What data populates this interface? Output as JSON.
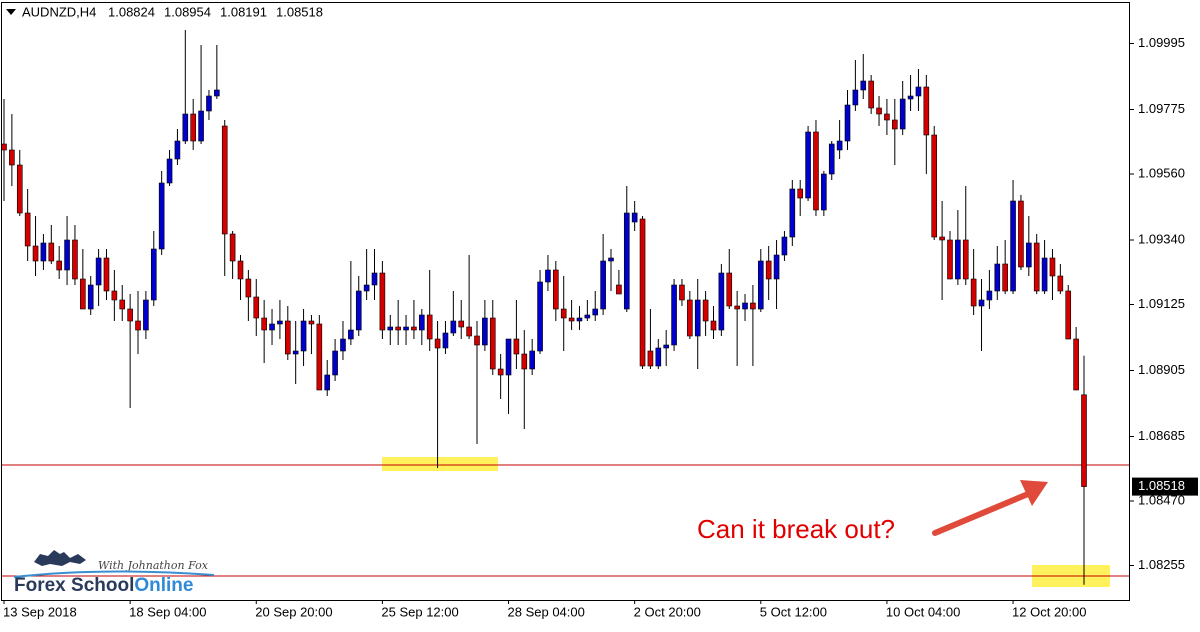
{
  "chart_data": {
    "type": "candlestick",
    "symbol": "AUDNZD,H4",
    "annotation": "Can it break out?",
    "logo": {
      "brand": "Forex School",
      "brand_accent": "Online",
      "tagline": "With Johnathon Fox"
    },
    "up_color": "#0000cd",
    "down_color": "#d40000",
    "wick_color": "#000000",
    "level_color": "#c00000",
    "ylim": [
      1.0814,
      1.1014
    ],
    "yticks": [
      1.09995,
      1.09775,
      {
        "value": 1.0956,
        "label": "1.09560"
      },
      {
        "value": 1.0934,
        "label": "1.09340"
      },
      1.09125,
      1.08905,
      1.08685,
      {
        "value": 1.0847,
        "label": "1.08470"
      },
      1.08255
    ],
    "levels": [
      1.0859,
      1.0822
    ],
    "categories": [
      "13 Sep 2018",
      null,
      null,
      null,
      null,
      null,
      null,
      null,
      null,
      null,
      null,
      null,
      null,
      null,
      null,
      null,
      "18 Sep 04:00",
      null,
      null,
      null,
      null,
      null,
      null,
      null,
      null,
      null,
      null,
      null,
      null,
      null,
      null,
      null,
      "20 Sep 20:00",
      null,
      null,
      null,
      null,
      null,
      null,
      null,
      null,
      null,
      null,
      null,
      null,
      null,
      null,
      null,
      "25 Sep 12:00",
      null,
      null,
      null,
      null,
      null,
      null,
      null,
      null,
      null,
      null,
      null,
      null,
      null,
      null,
      null,
      "28 Sep 04:00",
      null,
      null,
      null,
      null,
      null,
      null,
      null,
      null,
      null,
      null,
      null,
      null,
      null,
      null,
      null,
      "2 Oct 20:00",
      null,
      null,
      null,
      null,
      null,
      null,
      null,
      null,
      null,
      null,
      null,
      null,
      null,
      null,
      null,
      "5 Oct 12:00",
      null,
      null,
      null,
      null,
      null,
      null,
      null,
      null,
      null,
      null,
      null,
      null,
      null,
      null,
      null,
      "10 Oct 04:00",
      null,
      null,
      null,
      null,
      null,
      null,
      null,
      null,
      null,
      null,
      null,
      null,
      null,
      null,
      null,
      "12 Oct 20:00",
      null,
      null,
      null,
      null,
      null,
      null,
      null,
      null,
      null
    ],
    "ohlc": [
      [
        1.0966,
        1.0981,
        1.0947,
        1.0964
      ],
      [
        1.0964,
        1.0976,
        1.0952,
        1.0959
      ],
      [
        1.0959,
        1.0964,
        1.0942,
        1.0943
      ],
      [
        1.0943,
        1.0951,
        1.0927,
        1.0932
      ],
      [
        1.0932,
        1.0942,
        1.0922,
        1.0927
      ],
      [
        1.0927,
        1.0936,
        1.0924,
        1.0933
      ],
      [
        1.0933,
        1.0939,
        1.0926,
        1.0927
      ],
      [
        1.0927,
        1.0932,
        1.0921,
        1.0924
      ],
      [
        1.0924,
        1.0942,
        1.0919,
        1.0934
      ],
      [
        1.0934,
        1.0939,
        1.0919,
        1.0921
      ],
      [
        1.0921,
        1.0931,
        1.0911,
        1.0911
      ],
      [
        1.0911,
        1.0922,
        1.0909,
        1.0919
      ],
      [
        1.0919,
        1.0931,
        1.0912,
        1.0928
      ],
      [
        1.0928,
        1.0931,
        1.0914,
        1.0917
      ],
      [
        1.0917,
        1.0924,
        1.0907,
        1.0914
      ],
      [
        1.0914,
        1.0919,
        1.0907,
        1.0911
      ],
      [
        1.0911,
        1.0916,
        1.0878,
        1.0907
      ],
      [
        1.0907,
        1.0917,
        1.0896,
        1.0904
      ],
      [
        1.0904,
        1.0917,
        1.0901,
        1.0914
      ],
      [
        1.0914,
        1.0937,
        1.0912,
        1.0931
      ],
      [
        1.0931,
        1.0957,
        1.0929,
        1.0953
      ],
      [
        1.0953,
        1.0964,
        1.0952,
        1.0961
      ],
      [
        1.0961,
        1.0971,
        1.0959,
        1.0967
      ],
      [
        1.0967,
        1.1004,
        1.0966,
        1.0976
      ],
      [
        1.0976,
        1.0981,
        1.0964,
        1.0967
      ],
      [
        1.0967,
        1.0999,
        1.0966,
        1.0977
      ],
      [
        1.0977,
        1.0984,
        1.0974,
        1.0982
      ],
      [
        1.0982,
        1.0999,
        1.0981,
        1.0984
      ],
      [
        1.0972,
        1.0974,
        1.0922,
        1.0936
      ],
      [
        1.0936,
        1.0937,
        1.0921,
        1.0927
      ],
      [
        1.0927,
        1.0929,
        1.0914,
        1.0921
      ],
      [
        1.0921,
        1.0924,
        1.0907,
        1.0915
      ],
      [
        1.0915,
        1.0921,
        1.0902,
        1.0908
      ],
      [
        1.0908,
        1.0914,
        1.0893,
        1.0904
      ],
      [
        1.0904,
        1.0911,
        1.0899,
        1.0906
      ],
      [
        1.0906,
        1.0914,
        1.0901,
        1.0907
      ],
      [
        1.0907,
        1.0912,
        1.0894,
        1.0896
      ],
      [
        1.0896,
        1.0907,
        1.0886,
        1.0897
      ],
      [
        1.0897,
        1.0911,
        1.0892,
        1.0907
      ],
      [
        1.0907,
        1.0909,
        1.0896,
        1.0906
      ],
      [
        1.0906,
        1.0909,
        1.0884,
        1.0884
      ],
      [
        1.0884,
        1.0894,
        1.0882,
        1.0889
      ],
      [
        1.0889,
        1.0901,
        1.0887,
        1.0897
      ],
      [
        1.0897,
        1.0907,
        1.0894,
        1.0901
      ],
      [
        1.0901,
        1.0927,
        1.0899,
        1.0904
      ],
      [
        1.0904,
        1.0922,
        1.0902,
        1.0917
      ],
      [
        1.0917,
        1.0931,
        1.0914,
        1.0919
      ],
      [
        1.0919,
        1.0931,
        1.0914,
        1.0923
      ],
      [
        1.0923,
        1.0927,
        1.0901,
        1.0904
      ],
      [
        1.0904,
        1.0909,
        1.0899,
        1.0905
      ],
      [
        1.0905,
        1.0914,
        1.0899,
        1.0904
      ],
      [
        1.0904,
        1.0909,
        1.0899,
        1.0905
      ],
      [
        1.0905,
        1.0914,
        1.0901,
        1.0904
      ],
      [
        1.0904,
        1.0911,
        1.0899,
        1.0909
      ],
      [
        1.0909,
        1.0924,
        1.0897,
        1.0901
      ],
      [
        1.0901,
        1.0907,
        1.0858,
        1.0898
      ],
      [
        1.0898,
        1.0907,
        1.0896,
        1.0903
      ],
      [
        1.0903,
        1.0917,
        1.0902,
        1.0907
      ],
      [
        1.0907,
        1.0914,
        1.0901,
        1.0905
      ],
      [
        1.0905,
        1.0929,
        1.0901,
        1.0902
      ],
      [
        1.0902,
        1.0907,
        1.0866,
        1.0899
      ],
      [
        1.0899,
        1.0914,
        1.0897,
        1.0908
      ],
      [
        1.0908,
        1.0914,
        1.0889,
        1.0891
      ],
      [
        1.0891,
        1.0896,
        1.0881,
        1.0889
      ],
      [
        1.0889,
        1.0901,
        1.0876,
        1.0901
      ],
      [
        1.0901,
        1.0914,
        1.0891,
        1.0896
      ],
      [
        1.0896,
        1.0904,
        1.0871,
        1.0891
      ],
      [
        1.0891,
        1.0901,
        1.0889,
        1.0897
      ],
      [
        1.0897,
        1.0924,
        1.0896,
        1.092
      ],
      [
        1.092,
        1.0929,
        1.0917,
        1.0924
      ],
      [
        1.0924,
        1.0927,
        1.0907,
        1.0911
      ],
      [
        1.0911,
        1.0922,
        1.0897,
        1.0908
      ],
      [
        1.0908,
        1.0914,
        1.0904,
        1.0907
      ],
      [
        1.0907,
        1.0912,
        1.0904,
        1.0908
      ],
      [
        1.0908,
        1.0914,
        1.0907,
        1.0909
      ],
      [
        1.0909,
        1.0917,
        1.0907,
        1.0911
      ],
      [
        1.0911,
        1.0936,
        1.0909,
        1.0927
      ],
      [
        1.0927,
        1.0931,
        1.0917,
        1.0928
      ],
      [
        1.0919,
        1.0924,
        1.0916,
        1.0916
      ],
      [
        1.0911,
        1.0952,
        1.091,
        1.0943
      ],
      [
        1.094,
        1.0947,
        1.0937,
        1.0943
      ],
      [
        1.0941,
        1.0942,
        1.0891,
        1.0892
      ],
      [
        1.0897,
        1.0911,
        1.0891,
        1.0892
      ],
      [
        1.0892,
        1.0901,
        1.0891,
        1.0898
      ],
      [
        1.0898,
        1.0904,
        1.0892,
        1.0899
      ],
      [
        1.0899,
        1.0921,
        1.0897,
        1.0919
      ],
      [
        1.0919,
        1.0921,
        1.0912,
        1.0914
      ],
      [
        1.0914,
        1.0917,
        1.0901,
        1.0902
      ],
      [
        1.0902,
        1.0921,
        1.0891,
        1.0914
      ],
      [
        1.0914,
        1.0917,
        1.0902,
        1.0907
      ],
      [
        1.0907,
        1.0912,
        1.0901,
        1.0904
      ],
      [
        1.0904,
        1.0926,
        1.0902,
        1.0923
      ],
      [
        1.0923,
        1.0931,
        1.0911,
        1.0912
      ],
      [
        1.0912,
        1.0917,
        1.0892,
        1.0911
      ],
      [
        1.0911,
        1.0916,
        1.0907,
        1.0913
      ],
      [
        1.0913,
        1.0919,
        1.0892,
        1.0911
      ],
      [
        1.0911,
        1.0931,
        1.091,
        1.0927
      ],
      [
        1.0927,
        1.0932,
        1.0914,
        1.0921
      ],
      [
        1.0921,
        1.0934,
        1.0911,
        1.0929
      ],
      [
        1.0929,
        1.0937,
        1.0927,
        1.0935
      ],
      [
        1.0935,
        1.0954,
        1.0932,
        1.0951
      ],
      [
        1.0951,
        1.0954,
        1.0942,
        1.0948
      ],
      [
        1.0948,
        1.0972,
        1.0947,
        1.097
      ],
      [
        1.097,
        1.0974,
        1.0942,
        1.0944
      ],
      [
        1.0944,
        1.0957,
        1.0942,
        1.0956
      ],
      [
        1.0956,
        1.0967,
        1.0954,
        1.0966
      ],
      [
        1.0964,
        1.0974,
        1.0961,
        1.0967
      ],
      [
        1.0967,
        1.0984,
        1.0964,
        1.0979
      ],
      [
        1.0979,
        1.0994,
        1.0977,
        1.0984
      ],
      [
        1.0984,
        1.0996,
        1.0981,
        1.0987
      ],
      [
        1.0987,
        1.0989,
        1.0976,
        1.0978
      ],
      [
        1.0978,
        1.0982,
        1.0972,
        1.0976
      ],
      [
        1.0976,
        1.0981,
        1.0969,
        1.0974
      ],
      [
        1.0974,
        1.0981,
        1.0959,
        1.0971
      ],
      [
        1.0971,
        1.0987,
        1.0969,
        1.0981
      ],
      [
        1.0981,
        1.0989,
        1.0977,
        1.0982
      ],
      [
        1.0982,
        1.0991,
        1.0977,
        1.0985
      ],
      [
        1.0985,
        1.0989,
        1.0956,
        1.0969
      ],
      [
        1.0969,
        1.0972,
        1.0934,
        1.0935
      ],
      [
        1.0935,
        1.0947,
        1.0914,
        1.0934
      ],
      [
        1.0934,
        1.0937,
        1.0921,
        1.0921
      ],
      [
        1.0921,
        1.0944,
        1.0919,
        1.0934
      ],
      [
        1.0934,
        1.0952,
        1.0919,
        1.0921
      ],
      [
        1.0921,
        1.0931,
        1.0909,
        1.0912
      ],
      [
        1.0912,
        1.0921,
        1.0897,
        1.0914
      ],
      [
        1.0914,
        1.0924,
        1.0911,
        1.0917
      ],
      [
        1.0917,
        1.0932,
        1.0914,
        1.0926
      ],
      [
        1.0926,
        1.0934,
        1.0916,
        1.0917
      ],
      [
        1.0917,
        1.0954,
        1.0916,
        1.0947
      ],
      [
        1.0947,
        1.0949,
        1.0924,
        1.0925
      ],
      [
        1.0925,
        1.0942,
        1.0922,
        1.0933
      ],
      [
        1.0933,
        1.0936,
        1.0916,
        1.0917
      ],
      [
        1.0917,
        1.0934,
        1.0916,
        1.0928
      ],
      [
        1.0928,
        1.0931,
        1.0914,
        1.0922
      ],
      [
        1.0922,
        1.0926,
        1.0916,
        1.0917
      ],
      [
        1.0917,
        1.0919,
        1.0901,
        1.0901
      ],
      [
        1.0901,
        1.0905,
        1.0884,
        1.0884
      ],
      [
        1.08824,
        1.08954,
        1.08191,
        1.08518
      ]
    ]
  }
}
